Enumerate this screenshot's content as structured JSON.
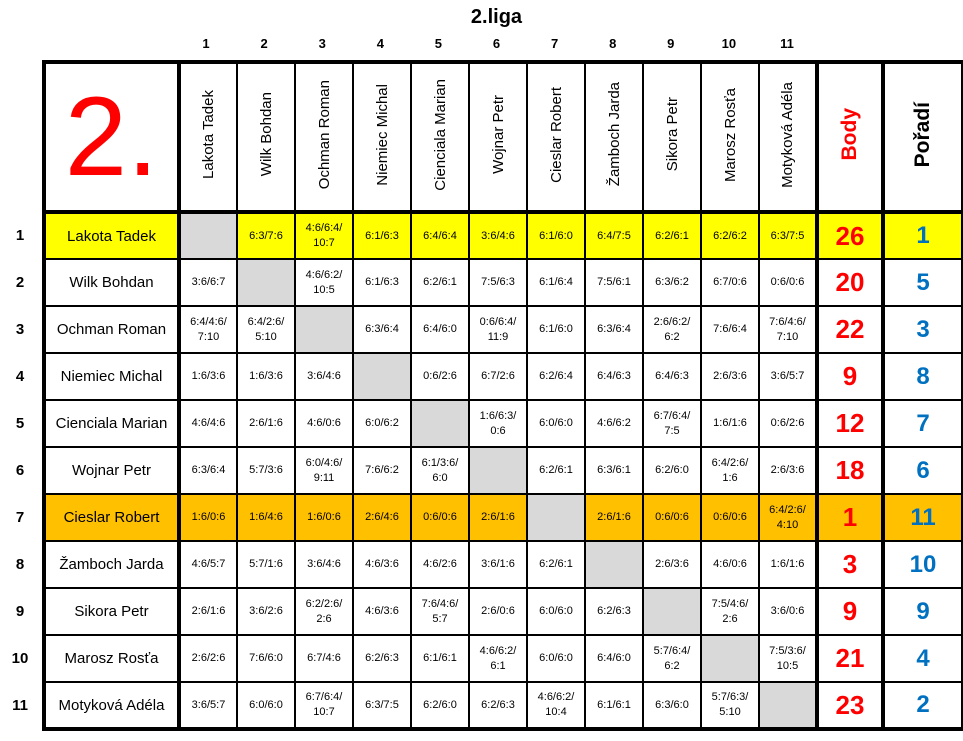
{
  "title": "2.liga",
  "league_number": "2.",
  "labels": {
    "body": "Body",
    "poradi": "Pořadí"
  },
  "order_numbers": [
    "1",
    "2",
    "3",
    "4",
    "5",
    "6",
    "7",
    "8",
    "9",
    "10",
    "11"
  ],
  "players": [
    "Lakota Tadek",
    "Wilk Bohdan",
    "Ochman Roman",
    "Niemiec Michal",
    "Cienciala Marian",
    "Wojnar Petr",
    "Cieslar Robert",
    "Žamboch Jarda",
    "Sikora Petr",
    "Marosz Rosťa",
    "Motyková Adéla"
  ],
  "matrix": [
    [
      null,
      "6:3/7:6",
      "4:6/6:4/10:7",
      "6:1/6:3",
      "6:4/6:4",
      "3:6/4:6",
      "6:1/6:0",
      "6:4/7:5",
      "6:2/6:1",
      "6:2/6:2",
      "6:3/7:5"
    ],
    [
      "3:6/6:7",
      null,
      "4:6/6:2/10:5",
      "6:1/6:3",
      "6:2/6:1",
      "7:5/6:3",
      "6:1/6:4",
      "7:5/6:1",
      "6:3/6:2",
      "6:7/0:6",
      "0:6/0:6"
    ],
    [
      "6:4/4:6/7:10",
      "6:4/2:6/5:10",
      null,
      "6:3/6:4",
      "6:4/6:0",
      "0:6/6:4/11:9",
      "6:1/6:0",
      "6:3/6:4",
      "2:6/6:2/6:2",
      "7:6/6:4",
      "7:6/4:6/7:10"
    ],
    [
      "1:6/3:6",
      "1:6/3:6",
      "3:6/4:6",
      null,
      "0:6/2:6",
      "6:7/2:6",
      "6:2/6:4",
      "6:4/6:3",
      "6:4/6:3",
      "2:6/3:6",
      "3:6/5:7"
    ],
    [
      "4:6/4:6",
      "2:6/1:6",
      "4:6/0:6",
      "6:0/6:2",
      null,
      "1:6/6:3/0:6",
      "6:0/6:0",
      "4:6/6:2",
      "6:7/6:4/7:5",
      "1:6/1:6",
      "0:6/2:6"
    ],
    [
      "6:3/6:4",
      "5:7/3:6",
      "6:0/4:6/9:11",
      "7:6/6:2",
      "6:1/3:6/6:0",
      null,
      "6:2/6:1",
      "6:3/6:1",
      "6:2/6:0",
      "6:4/2:6/1:6",
      "2:6/3:6"
    ],
    [
      "1:6/0:6",
      "1:6/4:6",
      "1:6/0:6",
      "2:6/4:6",
      "0:6/0:6",
      "2:6/1:6",
      null,
      "2:6/1:6",
      "0:6/0:6",
      "0:6/0:6",
      "6:4/2:6/4:10"
    ],
    [
      "4:6/5:7",
      "5:7/1:6",
      "3:6/4:6",
      "4:6/3:6",
      "4:6/2:6",
      "3:6/1:6",
      "6:2/6:1",
      null,
      "2:6/3:6",
      "4:6/0:6",
      "1:6/1:6"
    ],
    [
      "2:6/1:6",
      "3:6/2:6",
      "6:2/2:6/2:6",
      "4:6/3:6",
      "7:6/4:6/5:7",
      "2:6/0:6",
      "6:0/6:0",
      "6:2/6:3",
      null,
      "7:5/4:6/2:6",
      "3:6/0:6"
    ],
    [
      "2:6/2:6",
      "7:6/6:0",
      "6:7/4:6",
      "6:2/6:3",
      "6:1/6:1",
      "4:6/6:2/6:1",
      "6:0/6:0",
      "6:4/6:0",
      "5:7/6:4/6:2",
      null,
      "7:5/3:6/10:5"
    ],
    [
      "3:6/5:7",
      "6:0/6:0",
      "6:7/6:4/10:7",
      "6:3/7:5",
      "6:2/6:0",
      "6:2/6:3",
      "4:6/6:2/10:4",
      "6:1/6:1",
      "6:3/6:0",
      "5:7/6:3/5:10",
      null
    ]
  ],
  "body": [
    26,
    20,
    22,
    9,
    12,
    18,
    1,
    3,
    9,
    21,
    23
  ],
  "poradi": [
    1,
    5,
    3,
    8,
    7,
    6,
    11,
    10,
    9,
    4,
    2
  ],
  "row_highlights": {
    "0": "#FFFF00",
    "6": "#FFC000"
  },
  "colors": {
    "accent_red": "#FF0000",
    "rank_blue": "#0070C0",
    "highlight_yellow": "#FFFF00",
    "highlight_orange": "#FFC000",
    "diagonal_gray": "#D9D9D9",
    "grid_black": "#000000"
  }
}
